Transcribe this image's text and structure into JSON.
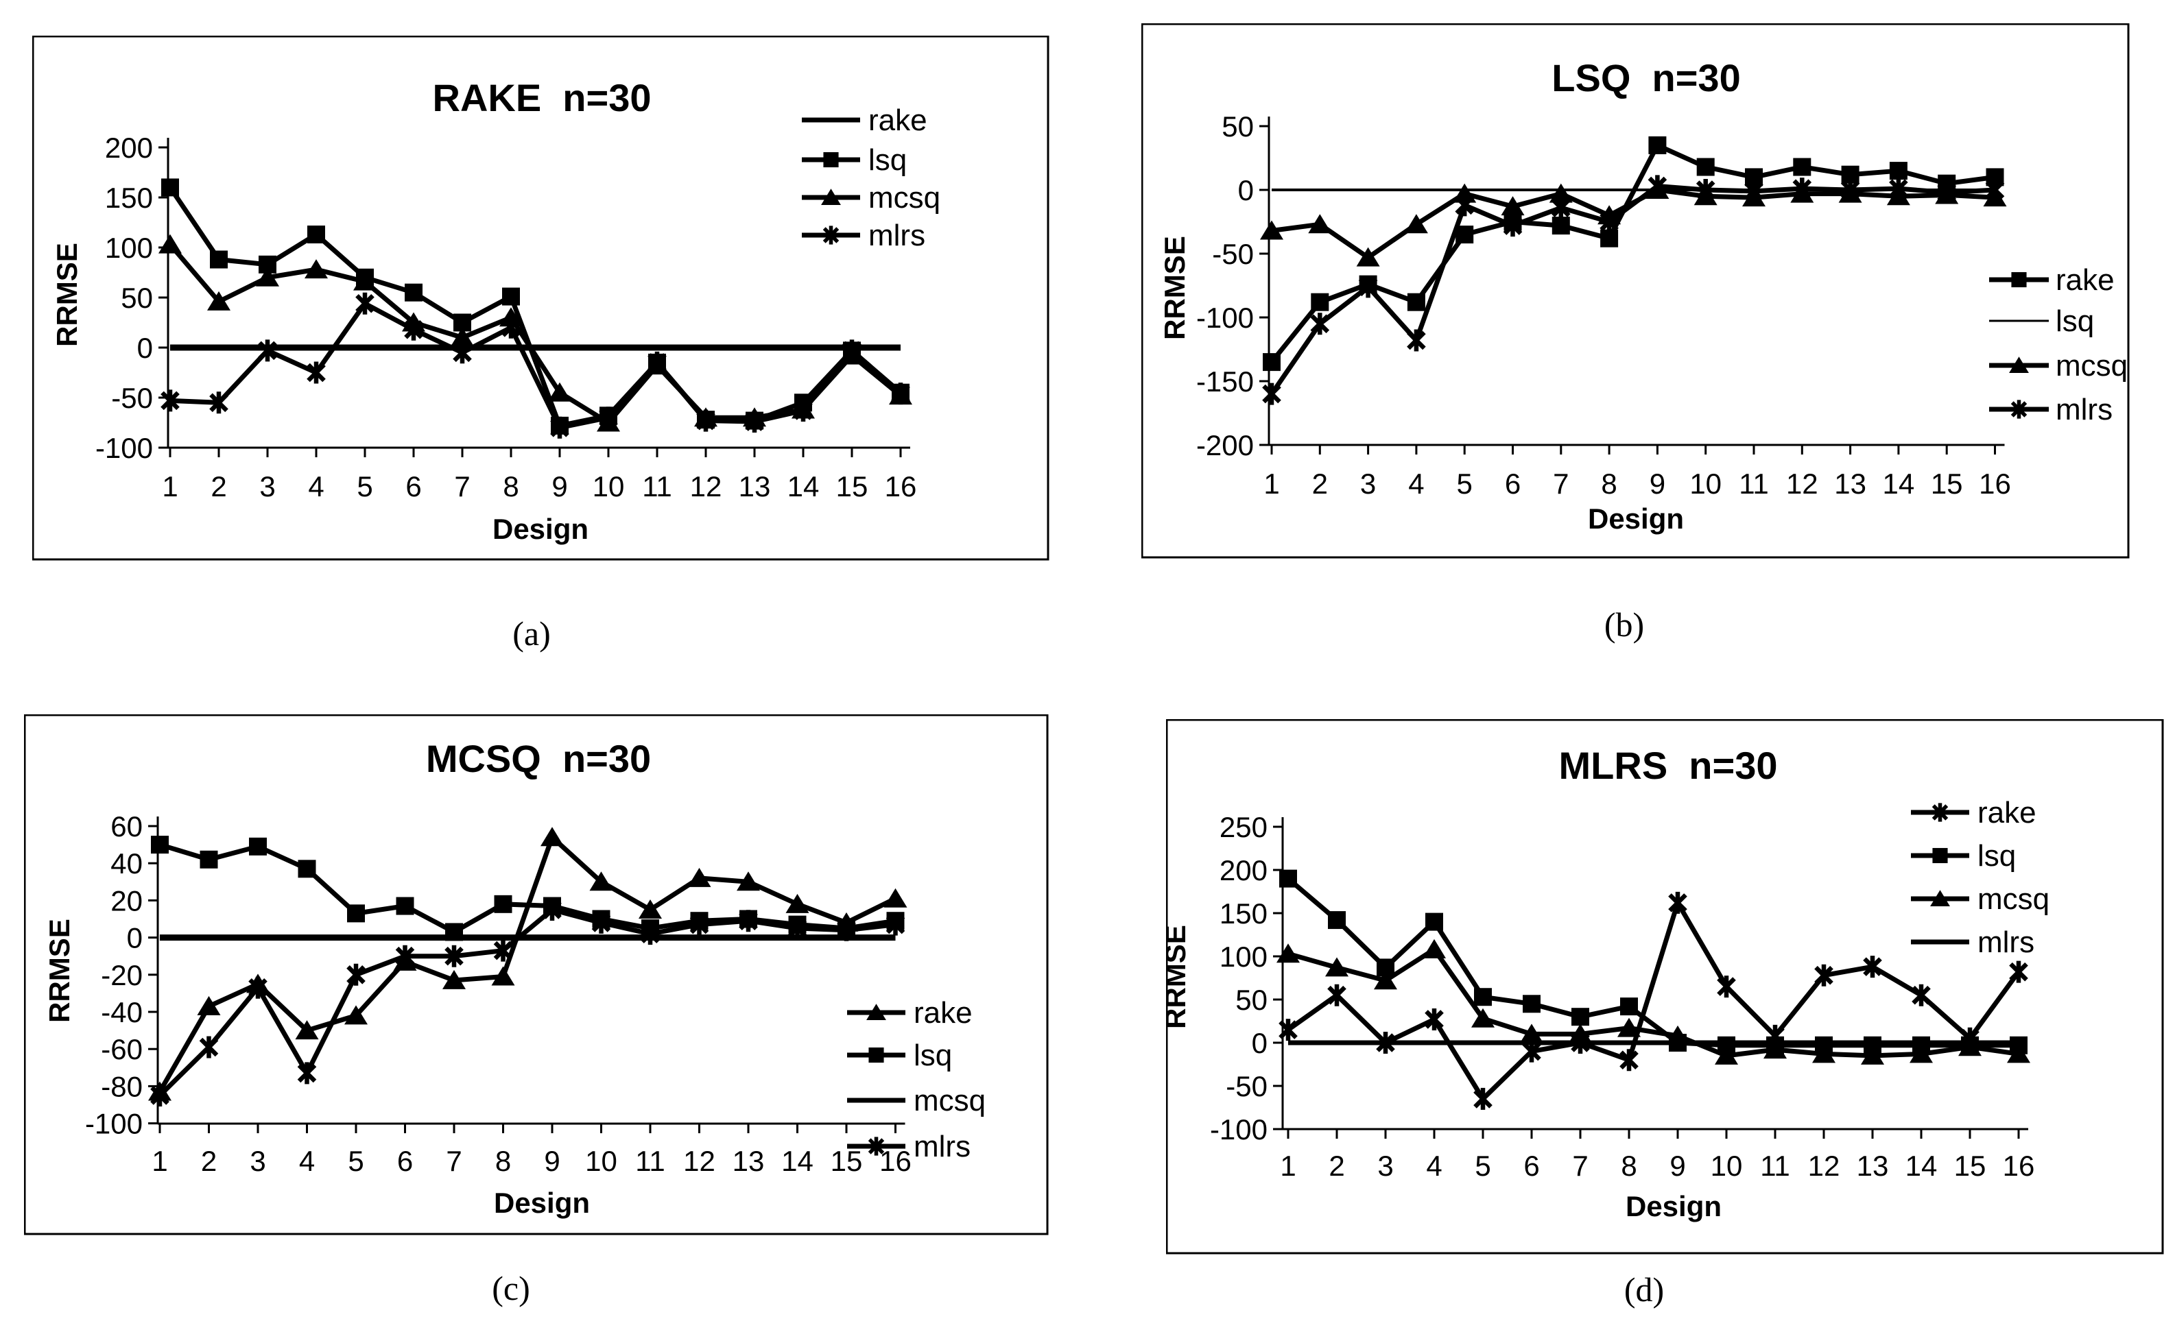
{
  "page": {
    "background": "#ffffff",
    "ink": "#000000"
  },
  "captions": {
    "a": "(a)",
    "b": "(b)",
    "c": "(c)",
    "d": "(d)"
  },
  "chart_data": [
    {
      "id": "a",
      "type": "line",
      "title": "RAKE  n=30",
      "xlabel": "Design",
      "ylabel": "RRMSE",
      "x": [
        1,
        2,
        3,
        4,
        5,
        6,
        7,
        8,
        9,
        10,
        11,
        12,
        13,
        14,
        15,
        16
      ],
      "ylim": [
        -100,
        200
      ],
      "yticks": [
        200,
        150,
        100,
        50,
        0,
        -50,
        -100
      ],
      "grid": false,
      "legend_position": "inside-top-right",
      "series": [
        {
          "name": "rake",
          "marker": "none",
          "values": [
            0,
            0,
            0,
            0,
            0,
            0,
            0,
            0,
            0,
            0,
            0,
            0,
            0,
            0,
            0,
            0
          ]
        },
        {
          "name": "lsq",
          "marker": "square",
          "values": [
            160,
            88,
            83,
            113,
            70,
            55,
            25,
            51,
            -78,
            -68,
            -15,
            -72,
            -73,
            -55,
            -3,
            -45
          ]
        },
        {
          "name": "mcsq",
          "marker": "triangle",
          "values": [
            103,
            46,
            70,
            78,
            66,
            25,
            10,
            30,
            -45,
            -75,
            -18,
            -70,
            -70,
            -62,
            -8,
            -48
          ]
        },
        {
          "name": "mlrs",
          "marker": "asterisk",
          "values": [
            -53,
            -55,
            -3,
            -25,
            44,
            18,
            -5,
            20,
            -80,
            -70,
            -15,
            -73,
            -74,
            -63,
            -3,
            -46
          ]
        }
      ]
    },
    {
      "id": "b",
      "type": "line",
      "title": "LSQ  n=30",
      "xlabel": "Design",
      "ylabel": "RRMSE",
      "x": [
        1,
        2,
        3,
        4,
        5,
        6,
        7,
        8,
        9,
        10,
        11,
        12,
        13,
        14,
        15,
        16
      ],
      "ylim": [
        -200,
        50
      ],
      "yticks": [
        50,
        0,
        -50,
        -100,
        -150,
        -200
      ],
      "grid": false,
      "legend_position": "inside-right-middle",
      "series": [
        {
          "name": "rake",
          "marker": "square",
          "values": [
            -135,
            -88,
            -74,
            -88,
            -35,
            -25,
            -28,
            -38,
            35,
            18,
            10,
            18,
            12,
            15,
            5,
            10
          ]
        },
        {
          "name": "lsq",
          "marker": "none",
          "values": [
            0,
            0,
            0,
            0,
            0,
            0,
            0,
            0,
            0,
            0,
            0,
            0,
            0,
            0,
            0,
            0
          ]
        },
        {
          "name": "mcsq",
          "marker": "triangle",
          "values": [
            -32,
            -27,
            -53,
            -27,
            -3,
            -13,
            -3,
            -20,
            0,
            -5,
            -6,
            -3,
            -3,
            -5,
            -4,
            -6
          ]
        },
        {
          "name": "mlrs",
          "marker": "asterisk",
          "values": [
            -160,
            -105,
            -76,
            -118,
            -12,
            -28,
            -14,
            -25,
            3,
            0,
            -1,
            1,
            0,
            1,
            -2,
            0
          ]
        }
      ]
    },
    {
      "id": "c",
      "type": "line",
      "title": "MCSQ  n=30",
      "xlabel": "Design",
      "ylabel": "RRMSE",
      "x": [
        1,
        2,
        3,
        4,
        5,
        6,
        7,
        8,
        9,
        10,
        11,
        12,
        13,
        14,
        15,
        16
      ],
      "ylim": [
        -100,
        60
      ],
      "yticks": [
        60,
        40,
        20,
        0,
        -20,
        -40,
        -60,
        -80,
        -100
      ],
      "grid": false,
      "legend_position": "inside-bottom-right",
      "series": [
        {
          "name": "rake",
          "marker": "triangle",
          "values": [
            -83,
            -37,
            -25,
            -50,
            -42,
            -13,
            -23,
            -21,
            54,
            30,
            15,
            32,
            30,
            18,
            8,
            21
          ]
        },
        {
          "name": "lsq",
          "marker": "square",
          "values": [
            50,
            42,
            49,
            37,
            13,
            17,
            3,
            18,
            17,
            10,
            5,
            9,
            10,
            7,
            5,
            9
          ]
        },
        {
          "name": "mcsq",
          "marker": "none",
          "values": [
            0,
            0,
            0,
            0,
            0,
            0,
            0,
            0,
            0,
            0,
            0,
            0,
            0,
            0,
            0,
            0
          ]
        },
        {
          "name": "mlrs",
          "marker": "asterisk",
          "values": [
            -85,
            -59,
            -27,
            -73,
            -20,
            -10,
            -10,
            -7,
            15,
            8,
            2,
            7,
            9,
            5,
            4,
            7
          ]
        }
      ]
    },
    {
      "id": "d",
      "type": "line",
      "title": "MLRS  n=30",
      "xlabel": "Design",
      "ylabel": "RRMSE",
      "x": [
        1,
        2,
        3,
        4,
        5,
        6,
        7,
        8,
        9,
        10,
        11,
        12,
        13,
        14,
        15,
        16
      ],
      "ylim": [
        -100,
        250
      ],
      "yticks": [
        250,
        200,
        150,
        100,
        50,
        0,
        -50,
        -100
      ],
      "grid": false,
      "legend_position": "inside-top-right",
      "series": [
        {
          "name": "rake",
          "marker": "asterisk",
          "values": [
            15,
            55,
            0,
            27,
            -65,
            -10,
            0,
            -20,
            162,
            65,
            8,
            78,
            88,
            55,
            5,
            82
          ]
        },
        {
          "name": "lsq",
          "marker": "square",
          "values": [
            190,
            142,
            87,
            140,
            53,
            45,
            30,
            42,
            0,
            -3,
            -3,
            -3,
            -3,
            -3,
            -3,
            -3
          ]
        },
        {
          "name": "mcsq",
          "marker": "triangle",
          "values": [
            103,
            87,
            72,
            108,
            28,
            10,
            10,
            17,
            8,
            -15,
            -8,
            -13,
            -15,
            -13,
            -5,
            -13
          ]
        },
        {
          "name": "mlrs",
          "marker": "none",
          "values": [
            0,
            0,
            0,
            0,
            0,
            0,
            0,
            0,
            0,
            0,
            0,
            0,
            0,
            0,
            0,
            0
          ]
        }
      ]
    }
  ]
}
